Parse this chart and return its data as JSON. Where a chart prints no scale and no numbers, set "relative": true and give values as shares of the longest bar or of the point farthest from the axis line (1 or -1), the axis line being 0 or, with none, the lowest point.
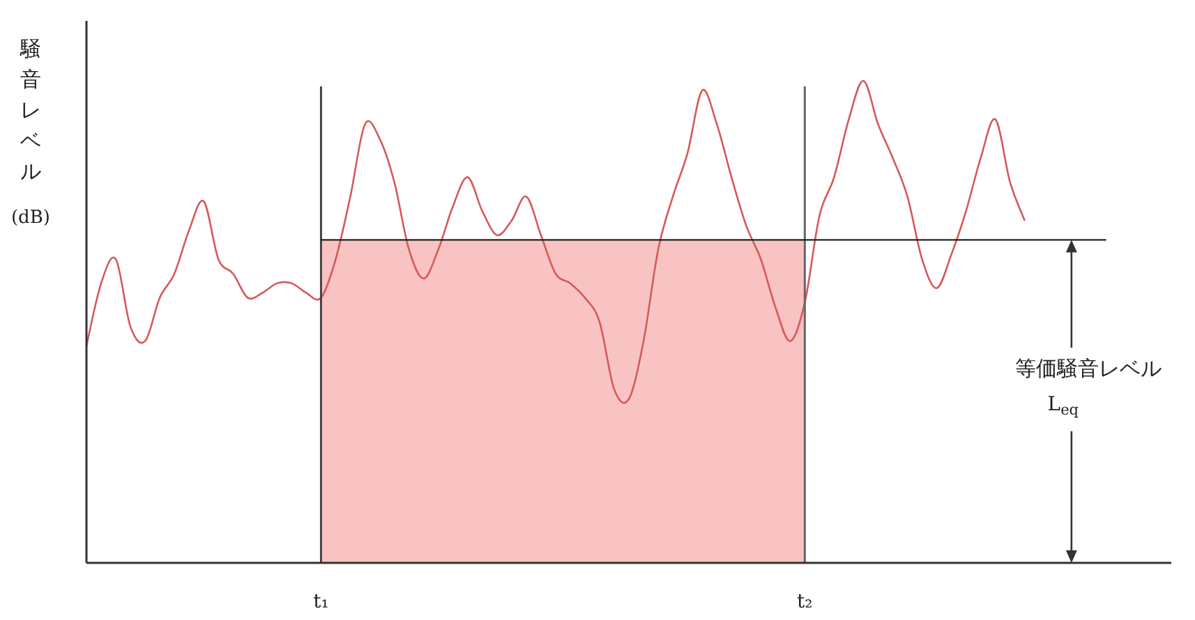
{
  "chart_data": {
    "type": "line",
    "relative": true,
    "ylabel": "騒音レベル(dB)",
    "categories": [
      null,
      null,
      null,
      null,
      null,
      null,
      null,
      null,
      null,
      null,
      null,
      null,
      null,
      null,
      null,
      null,
      "t₁",
      null,
      null,
      null,
      null,
      null,
      null,
      null,
      null,
      null,
      null,
      null,
      null,
      null,
      null,
      null,
      null,
      null,
      null,
      null,
      null,
      null,
      null,
      null,
      null,
      null,
      null,
      null,
      null,
      null,
      null,
      null,
      null,
      "t₂",
      null,
      null,
      null,
      null,
      null,
      null,
      null,
      null,
      null,
      null,
      null,
      null,
      null,
      null,
      null,
      null,
      null,
      null,
      null,
      null,
      null,
      null,
      null,
      null,
      null
    ],
    "series": [
      {
        "type": "area",
        "color": "#f9c3c3",
        "values": [
          null,
          null,
          null,
          null,
          null,
          null,
          null,
          null,
          null,
          null,
          null,
          null,
          null,
          null,
          null,
          null,
          0.67,
          0.67,
          0.67,
          0.67,
          0.67,
          0.67,
          0.67,
          0.67,
          0.67,
          0.67,
          0.67,
          0.67,
          0.67,
          0.67,
          0.67,
          0.67,
          0.67,
          0.67,
          0.67,
          0.67,
          0.67,
          0.67,
          0.67,
          0.67,
          0.67,
          0.67,
          0.67,
          0.67,
          0.67,
          0.67,
          0.67,
          0.67,
          0.67,
          0.67,
          null,
          null,
          null,
          null,
          null,
          null,
          null,
          null,
          null,
          null,
          null,
          null,
          null,
          null,
          null,
          null,
          null,
          null,
          null,
          null,
          null,
          null,
          null,
          null,
          null
        ]
      },
      {
        "type": "line",
        "color": "#d45a5a",
        "values": [
          0.45,
          0.58,
          0.63,
          0.49,
          0.46,
          0.55,
          0.6,
          0.69,
          0.75,
          0.63,
          0.6,
          0.55,
          0.56,
          0.58,
          0.58,
          0.56,
          0.55,
          0.63,
          0.76,
          0.91,
          0.88,
          0.79,
          0.65,
          0.59,
          0.65,
          0.74,
          0.8,
          0.73,
          0.68,
          0.71,
          0.76,
          0.68,
          0.6,
          0.58,
          0.55,
          0.5,
          0.36,
          0.34,
          0.46,
          0.65,
          0.76,
          0.85,
          0.98,
          0.91,
          0.8,
          0.7,
          0.63,
          0.53,
          0.46,
          0.54,
          0.72,
          0.8,
          0.92,
          1,
          0.91,
          0.84,
          0.76,
          0.63,
          0.57,
          0.64,
          0.73,
          0.84,
          0.92,
          0.79,
          0.71,
          null,
          null,
          null,
          null,
          null,
          null,
          null,
          null,
          null,
          null
        ]
      }
    ],
    "ref_lines": [
      {
        "axis": "x",
        "value": "t₁",
        "color": "#444444"
      },
      {
        "axis": "x",
        "value": "t₂",
        "color": "#666666"
      },
      {
        "axis": "y",
        "value": 0.67,
        "color": "#222222"
      }
    ],
    "annotations": [
      "等価騒音レベル",
      "L$_{eq}$"
    ]
  }
}
